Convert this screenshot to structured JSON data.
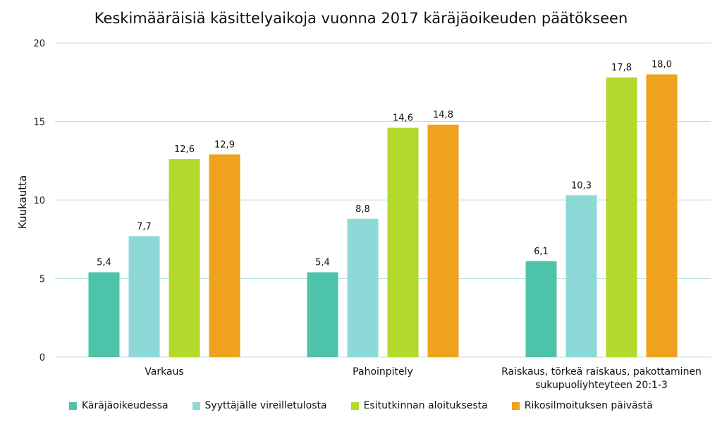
{
  "chart_data": {
    "type": "bar",
    "title": "Keskimääräisiä käsittelyaikoja vuonna 2017 käräjäoikeuden päätökseen",
    "ylabel": "Kuukautta",
    "xlabel": "",
    "ylim": [
      0,
      20
    ],
    "yticks": [
      "0",
      "5",
      "10",
      "15",
      "20"
    ],
    "categories": [
      [
        "Varkaus"
      ],
      [
        "Pahoinpitely"
      ],
      [
        "Raiskaus, törkeä raiskaus, pakottaminen",
        "sukupuoliyhteyteen 20:1-3"
      ]
    ],
    "series": [
      {
        "name": "Käräjäoikeudessa",
        "color": "#4dc4aa",
        "values": [
          5.4,
          5.4,
          6.1
        ],
        "labels": [
          "5,4",
          "5,4",
          "6,1"
        ]
      },
      {
        "name": "Syyttäjälle vireilletulosta",
        "color": "#8dd9d7",
        "values": [
          7.7,
          8.8,
          10.3
        ],
        "labels": [
          "7,7",
          "8,8",
          "10,3"
        ]
      },
      {
        "name": "Esitutkinnan aloituksesta",
        "color": "#b2d92c",
        "values": [
          12.6,
          14.6,
          17.8
        ],
        "labels": [
          "12,6",
          "14,6",
          "17,8"
        ]
      },
      {
        "name": "Rikosilmoituksen päivästä",
        "color": "#eea21e",
        "values": [
          12.9,
          14.8,
          18.0
        ],
        "labels": [
          "12,9",
          "14,8",
          "18,0"
        ]
      }
    ],
    "grid": true,
    "grid_color": "#b8e4e2",
    "legend_position": "bottom"
  }
}
